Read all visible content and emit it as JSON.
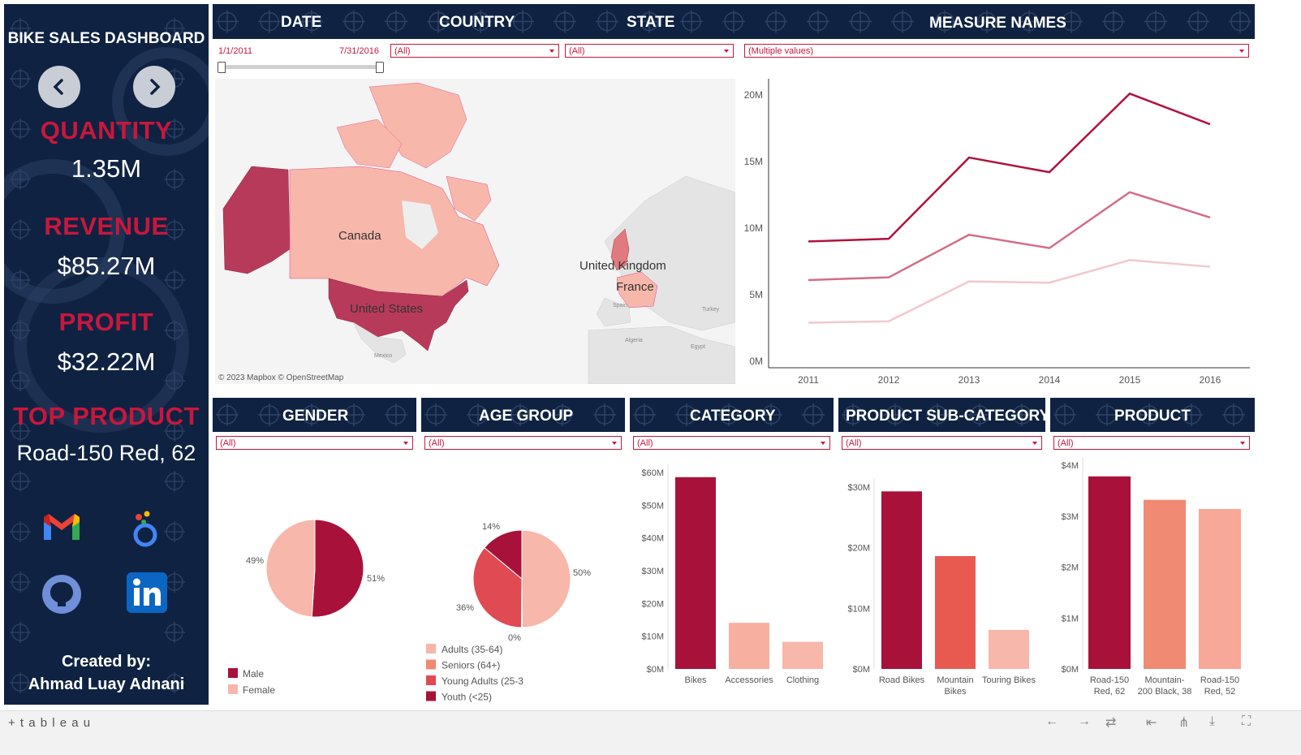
{
  "sidebar": {
    "title": "BIKE SALES DASHBOARD",
    "prev_icon": "chevron-left-icon",
    "next_icon": "chevron-right-icon",
    "kpis": [
      {
        "label": "QUANTITY",
        "value": "1.35M"
      },
      {
        "label": "REVENUE",
        "value": "$85.27M"
      },
      {
        "label": "PROFIT",
        "value": "$32.22M"
      },
      {
        "label": "TOP PRODUCT",
        "value": "Road-150 Red, 62"
      }
    ],
    "social_icons": [
      "gmail-icon",
      "community-icon",
      "github-icon",
      "linkedin-icon"
    ],
    "created_by_label": "Created by:",
    "created_by_name": "Ahmad Luay Adnani"
  },
  "filters_top": {
    "date": {
      "header": "DATE",
      "start": "1/1/2011",
      "end": "7/31/2016"
    },
    "country": {
      "header": "COUNTRY",
      "value": "(All)"
    },
    "state": {
      "header": "STATE",
      "value": "(All)"
    },
    "measure_names": {
      "header": "MEASURE NAMES",
      "value": "(Multiple values)"
    }
  },
  "map": {
    "labels": [
      "Canada",
      "United States",
      "United Kingdom",
      "France"
    ],
    "minor_labels": [
      "Spain",
      "Turkey",
      "Algeria",
      "Egypt",
      "Mexico"
    ],
    "attribution": "© 2023 Mapbox  © OpenStreetMap"
  },
  "colors": {
    "navy": "#0f2242",
    "crimson": "#c8173c",
    "dark_red": "#a8123a",
    "red": "#e04a52",
    "salmon": "#f08a72",
    "light_pink": "#f7b7aa",
    "pale_pink": "#f2c8cf"
  },
  "bottom_filters": {
    "gender": {
      "header": "GENDER",
      "value": "(All)"
    },
    "age_group": {
      "header": "AGE GROUP",
      "value": "(All)"
    },
    "category": {
      "header": "CATEGORY",
      "value": "(All)"
    },
    "sub_category": {
      "header": "PRODUCT SUB-CATEGORY",
      "value": "(All)"
    },
    "product": {
      "header": "PRODUCT",
      "value": "(All)"
    }
  },
  "chart_data": [
    {
      "id": "trend",
      "type": "line",
      "x": [
        "2011",
        "2012",
        "2013",
        "2014",
        "2015",
        "2016"
      ],
      "ylim": [
        0,
        20000000
      ],
      "yticks": [
        "0M",
        "5M",
        "10M",
        "15M",
        "20M"
      ],
      "series": [
        {
          "values": [
            9000000,
            9200000,
            15300000,
            14200000,
            20100000,
            17800000
          ],
          "color": "#b0123e"
        },
        {
          "values": [
            6100000,
            6300000,
            9500000,
            8500000,
            12700000,
            10800000
          ],
          "color": "#d26d86"
        },
        {
          "values": [
            2900000,
            3000000,
            6000000,
            5900000,
            7600000,
            7100000
          ],
          "color": "#f2c8cf"
        }
      ]
    },
    {
      "id": "gender",
      "type": "pie",
      "slices": [
        {
          "name": "Male",
          "value": 51,
          "label": "51%",
          "color": "#a8123a"
        },
        {
          "name": "Female",
          "value": 49,
          "label": "49%",
          "color": "#f7b7aa"
        }
      ]
    },
    {
      "id": "age",
      "type": "pie",
      "slices": [
        {
          "name": "Adults (35-64)",
          "value": 50,
          "label": "50%",
          "color": "#f7b7aa"
        },
        {
          "name": "Seniors (64+)",
          "value": 0.3,
          "label": "0%",
          "color": "#f08a72"
        },
        {
          "name": "Young Adults (25-3",
          "value": 36,
          "label": "36%",
          "color": "#e04a52"
        },
        {
          "name": "Youth (<25)",
          "value": 14,
          "label": "14%",
          "color": "#a8123a"
        }
      ]
    },
    {
      "id": "category",
      "type": "bar",
      "categories": [
        "Bikes",
        "Accessories",
        "Clothing"
      ],
      "values": [
        61500000,
        14800000,
        8700000
      ],
      "colors": [
        "#a8123a",
        "#f7b0a0",
        "#f7b7aa"
      ],
      "ylim": [
        0,
        63000000
      ],
      "yticks": [
        "$0M",
        "$10M",
        "$20M",
        "$30M",
        "$40M",
        "$50M",
        "$60M"
      ]
    },
    {
      "id": "subcategory",
      "type": "bar",
      "categories": [
        "Road Bikes",
        "Mountain Bikes",
        "Touring Bikes"
      ],
      "values": [
        33200000,
        21100000,
        7300000
      ],
      "colors": [
        "#a8123a",
        "#e85a50",
        "#f7b7aa"
      ],
      "ylim": [
        0,
        34000000
      ],
      "yticks": [
        "$0M",
        "$10M",
        "$20M",
        "$30M"
      ]
    },
    {
      "id": "product",
      "type": "bar",
      "categories": [
        "Road-150 Red, 62",
        "Mountain-200 Black, 38",
        "Road-150 Red, 52"
      ],
      "values": [
        3780000,
        3320000,
        3140000
      ],
      "colors": [
        "#a8123a",
        "#f08a72",
        "#f7a898"
      ],
      "ylim": [
        0,
        4000000
      ],
      "yticks": [
        "$0M",
        "$1M",
        "$2M",
        "$3M",
        "$4M"
      ]
    }
  ],
  "footer": {
    "brand": "+ t a b l e a u",
    "icons": [
      "back-icon",
      "forward-icon",
      "revert-icon",
      "first-icon",
      "share-icon",
      "download-icon",
      "fullscreen-icon"
    ]
  }
}
